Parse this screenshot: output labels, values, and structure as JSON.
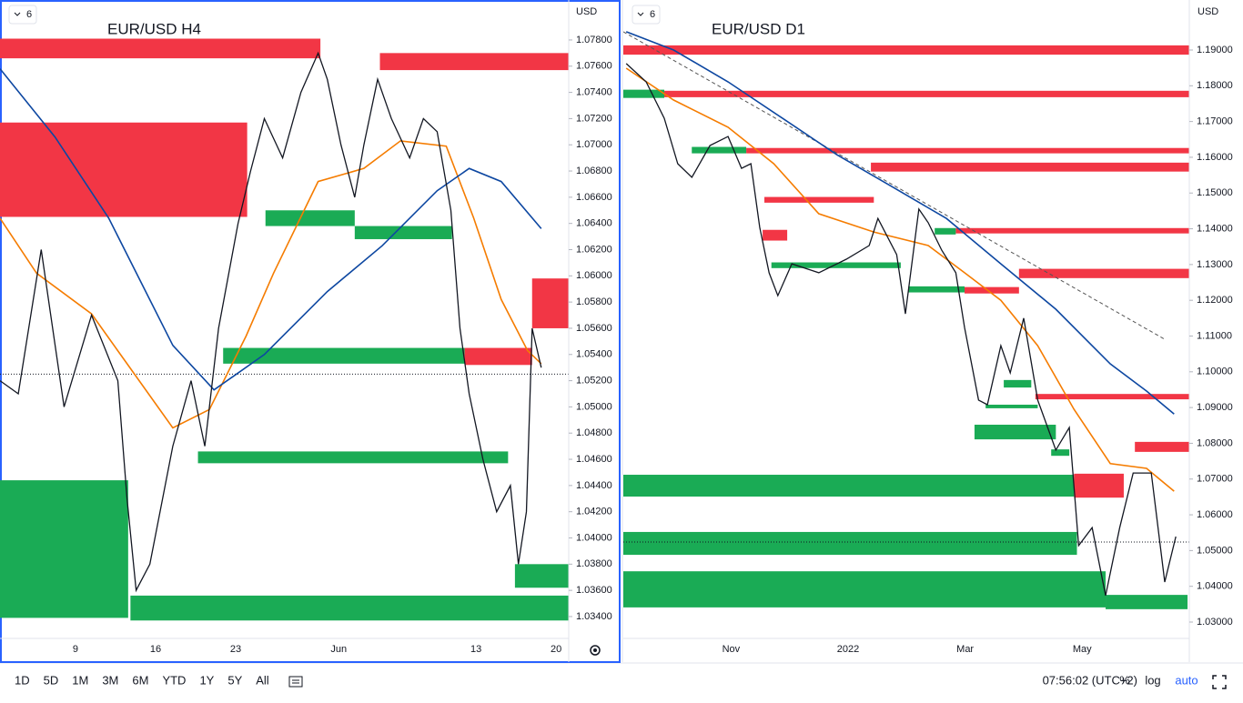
{
  "charts": [
    {
      "type": "line",
      "title": "EUR/USD H4",
      "badge": "6",
      "currency": "USD",
      "xlim": [
        2.4,
        52.1
      ],
      "ylim": [
        1.03247,
        1.08105
      ],
      "xticks": [
        9,
        16,
        23,
        {
          "value": 32,
          "label": "Jun"
        },
        13,
        20
      ],
      "xtick_values": [
        9,
        16,
        23,
        32,
        44,
        51
      ],
      "yticks": [
        {
          "value": 1.078,
          "label": "1.07800"
        },
        {
          "value": 1.076,
          "label": "1.07600"
        },
        {
          "value": 1.074,
          "label": "1.07400"
        },
        {
          "value": 1.072,
          "label": "1.07200"
        },
        {
          "value": 1.07,
          "label": "1.07000"
        },
        {
          "value": 1.068,
          "label": "1.06800"
        },
        {
          "value": 1.066,
          "label": "1.06600"
        },
        {
          "value": 1.064,
          "label": "1.06400"
        },
        {
          "value": 1.062,
          "label": "1.06200"
        },
        {
          "value": 1.06,
          "label": "1.06000"
        },
        {
          "value": 1.058,
          "label": "1.05800"
        },
        {
          "value": 1.056,
          "label": "1.05600"
        },
        {
          "value": 1.054,
          "label": "1.05400"
        },
        {
          "value": 1.052,
          "label": "1.05200"
        },
        {
          "value": 1.05,
          "label": "1.05000"
        },
        {
          "value": 1.048,
          "label": "1.04800"
        },
        {
          "value": 1.046,
          "label": "1.04600"
        },
        {
          "value": 1.044,
          "label": "1.04400"
        },
        {
          "value": 1.042,
          "label": "1.04200"
        },
        {
          "value": 1.04,
          "label": "1.04000"
        },
        {
          "value": 1.038,
          "label": "1.03800"
        },
        {
          "value": 1.036,
          "label": "1.03600"
        },
        {
          "value": 1.034,
          "label": "1.03400"
        }
      ],
      "last_price": 1.0525,
      "zones": [
        {
          "start": 2.4,
          "end": 30.4,
          "low": 1.0766,
          "high": 1.0781,
          "color": "#f23645"
        },
        {
          "start": 35.6,
          "end": 52.1,
          "low": 1.0757,
          "high": 1.077,
          "color": "#f23645"
        },
        {
          "start": 2.4,
          "end": 24.0,
          "low": 1.0645,
          "high": 1.0717,
          "color": "#f23645"
        },
        {
          "start": 25.6,
          "end": 33.4,
          "low": 1.0638,
          "high": 1.065,
          "color": "#1aab55"
        },
        {
          "start": 33.4,
          "end": 41.9,
          "low": 1.0628,
          "high": 1.0638,
          "color": "#1aab55"
        },
        {
          "start": 48.9,
          "end": 52.1,
          "low": 1.056,
          "high": 1.0598,
          "color": "#f23645"
        },
        {
          "start": 21.9,
          "end": 43.0,
          "low": 1.0533,
          "high": 1.0545,
          "color": "#1aab55"
        },
        {
          "start": 43.0,
          "end": 48.9,
          "low": 1.0532,
          "high": 1.0545,
          "color": "#f23645"
        },
        {
          "start": 19.7,
          "end": 46.8,
          "low": 1.0457,
          "high": 1.0466,
          "color": "#1aab55"
        },
        {
          "start": 2.4,
          "end": 13.6,
          "low": 1.0339,
          "high": 1.0444,
          "color": "#1aab55"
        },
        {
          "start": 47.4,
          "end": 52.1,
          "low": 1.0362,
          "high": 1.038,
          "color": "#1aab55"
        },
        {
          "start": 13.8,
          "end": 52.1,
          "low": 1.0337,
          "high": 1.0356,
          "color": "#1aab55"
        }
      ],
      "series": [
        {
          "color": "#f57c00",
          "x": [
            2.4,
            5.6,
            10.4,
            13.5,
            17.5,
            20.7,
            23.9,
            26.3,
            30.2,
            34.2,
            37.4,
            41.4,
            43.8,
            46.2,
            48.5,
            49.7
          ],
          "values": [
            1.0644,
            1.0602,
            1.0571,
            1.0533,
            1.0484,
            1.0498,
            1.0554,
            1.0602,
            1.0672,
            1.0682,
            1.0703,
            1.0699,
            1.0644,
            1.0582,
            1.0543,
            1.0533
          ]
        },
        {
          "color": "#0d47a1",
          "x": [
            2.4,
            7.2,
            11.9,
            17.5,
            21.1,
            25.5,
            31.0,
            35.8,
            40.6,
            43.4,
            46.2,
            49.7
          ],
          "values": [
            1.0758,
            1.0706,
            1.0644,
            1.0547,
            1.0513,
            1.054,
            1.0588,
            1.0623,
            1.0665,
            1.0682,
            1.0672,
            1.0636
          ]
        },
        {
          "color": "#131722",
          "x": [
            2.4,
            4.0,
            6.0,
            8.0,
            10.4,
            12.7,
            13.5,
            14.3,
            15.5,
            17.5,
            19.1,
            20.3,
            21.5,
            23.2,
            24.3,
            25.5,
            27.1,
            28.7,
            30.2,
            31.0,
            32.2,
            33.4,
            34.2,
            35.4,
            36.6,
            38.2,
            39.4,
            40.6,
            41.8,
            42.6,
            43.4,
            44.6,
            45.8,
            47.0,
            47.7,
            48.4,
            48.9,
            49.7
          ],
          "values": [
            1.052,
            1.051,
            1.062,
            1.05,
            1.057,
            1.052,
            1.043,
            1.036,
            1.038,
            1.047,
            1.052,
            1.047,
            1.056,
            1.064,
            1.068,
            1.072,
            1.069,
            1.074,
            1.077,
            1.075,
            1.07,
            1.066,
            1.07,
            1.075,
            1.072,
            1.069,
            1.072,
            1.071,
            1.065,
            1.056,
            1.051,
            1.046,
            1.042,
            1.044,
            1.038,
            1.042,
            1.056,
            1.053
          ]
        }
      ]
    },
    {
      "type": "line",
      "title": "EUR/USD D1",
      "badge": "6",
      "currency": "USD",
      "xlim": [
        9.16,
        18.83
      ],
      "ylim": [
        1.02593,
        1.20399
      ],
      "xticks": [
        {
          "value": 11,
          "label": "Nov"
        },
        2022,
        {
          "value": 15,
          "label": "Mar"
        },
        {
          "value": 17,
          "label": "May"
        }
      ],
      "xtick_values": [
        11,
        13,
        15,
        17
      ],
      "yticks": [
        {
          "value": 1.19,
          "label": "1.19000"
        },
        {
          "value": 1.18,
          "label": "1.18000"
        },
        {
          "value": 1.17,
          "label": "1.17000"
        },
        {
          "value": 1.16,
          "label": "1.16000"
        },
        {
          "value": 1.15,
          "label": "1.15000"
        },
        {
          "value": 1.14,
          "label": "1.14000"
        },
        {
          "value": 1.13,
          "label": "1.13000"
        },
        {
          "value": 1.12,
          "label": "1.12000"
        },
        {
          "value": 1.11,
          "label": "1.11000"
        },
        {
          "value": 1.1,
          "label": "1.10000"
        },
        {
          "value": 1.09,
          "label": "1.09000"
        },
        {
          "value": 1.08,
          "label": "1.08000"
        },
        {
          "value": 1.07,
          "label": "1.07000"
        },
        {
          "value": 1.06,
          "label": "1.06000"
        },
        {
          "value": 1.05,
          "label": "1.05000"
        },
        {
          "value": 1.04,
          "label": "1.04000"
        },
        {
          "value": 1.03,
          "label": "1.03000"
        }
      ],
      "last_price": 1.0524,
      "trendline": {
        "x": [
          9.16,
          18.41
        ],
        "values": [
          1.1951,
          1.1091
        ]
      },
      "zones": [
        {
          "start": 9.16,
          "end": 18.83,
          "low": 1.1887,
          "high": 1.1913,
          "color": "#f23645"
        },
        {
          "start": 9.86,
          "end": 18.83,
          "low": 1.1768,
          "high": 1.1786,
          "color": "#f23645"
        },
        {
          "start": 9.16,
          "end": 9.86,
          "low": 1.1766,
          "high": 1.1789,
          "color": "#1aab55"
        },
        {
          "start": 11.26,
          "end": 18.83,
          "low": 1.1611,
          "high": 1.1626,
          "color": "#f23645"
        },
        {
          "start": 10.33,
          "end": 11.26,
          "low": 1.1611,
          "high": 1.1629,
          "color": "#1aab55"
        },
        {
          "start": 13.39,
          "end": 18.83,
          "low": 1.156,
          "high": 1.1585,
          "color": "#f23645"
        },
        {
          "start": 11.57,
          "end": 13.44,
          "low": 1.1473,
          "high": 1.1489,
          "color": "#f23645"
        },
        {
          "start": 11.54,
          "end": 11.96,
          "low": 1.1367,
          "high": 1.1397,
          "color": "#f23645"
        },
        {
          "start": 14.84,
          "end": 18.83,
          "low": 1.1387,
          "high": 1.1402,
          "color": "#f23645"
        },
        {
          "start": 14.48,
          "end": 14.84,
          "low": 1.1384,
          "high": 1.1402,
          "color": "#1aab55"
        },
        {
          "start": 11.69,
          "end": 13.9,
          "low": 1.129,
          "high": 1.1306,
          "color": "#1aab55"
        },
        {
          "start": 15.92,
          "end": 18.83,
          "low": 1.1262,
          "high": 1.1288,
          "color": "#f23645"
        },
        {
          "start": 14.03,
          "end": 14.99,
          "low": 1.1222,
          "high": 1.1239,
          "color": "#1aab55"
        },
        {
          "start": 14.99,
          "end": 15.92,
          "low": 1.1219,
          "high": 1.1237,
          "color": "#f23645"
        },
        {
          "start": 15.66,
          "end": 16.13,
          "low": 1.0956,
          "high": 1.0977,
          "color": "#1aab55"
        },
        {
          "start": 16.2,
          "end": 18.83,
          "low": 1.0923,
          "high": 1.0938,
          "color": "#f23645"
        },
        {
          "start": 15.35,
          "end": 16.24,
          "low": 1.0898,
          "high": 1.0908,
          "color": "#1aab55"
        },
        {
          "start": 15.16,
          "end": 16.55,
          "low": 1.0811,
          "high": 1.0852,
          "color": "#1aab55"
        },
        {
          "start": 16.47,
          "end": 16.78,
          "low": 1.0765,
          "high": 1.0783,
          "color": "#1aab55"
        },
        {
          "start": 17.9,
          "end": 18.83,
          "low": 1.0776,
          "high": 1.0804,
          "color": "#f23645"
        },
        {
          "start": 9.16,
          "end": 16.86,
          "low": 1.0651,
          "high": 1.0712,
          "color": "#1aab55"
        },
        {
          "start": 16.86,
          "end": 17.71,
          "low": 1.0648,
          "high": 1.0715,
          "color": "#f23645"
        },
        {
          "start": 9.16,
          "end": 16.91,
          "low": 1.0488,
          "high": 1.0552,
          "color": "#1aab55"
        },
        {
          "start": 9.16,
          "end": 17.4,
          "low": 1.0341,
          "high": 1.0442,
          "color": "#1aab55"
        },
        {
          "start": 17.4,
          "end": 18.8,
          "low": 1.0336,
          "high": 1.0376,
          "color": "#1aab55"
        }
      ],
      "series": [
        {
          "color": "#f57c00",
          "x": [
            9.21,
            10.02,
            10.95,
            11.73,
            12.5,
            13.44,
            14.37,
            14.99,
            15.61,
            16.24,
            16.86,
            17.48,
            18.1,
            18.57
          ],
          "values": [
            1.1849,
            1.176,
            1.1684,
            1.1582,
            1.1442,
            1.1391,
            1.1353,
            1.1277,
            1.12,
            1.1073,
            1.0895,
            1.0743,
            1.073,
            1.0666
          ]
        },
        {
          "color": "#0d47a1",
          "x": [
            9.21,
            10.02,
            10.95,
            11.88,
            12.81,
            13.75,
            14.68,
            15.61,
            16.55,
            17.48,
            18.1,
            18.57
          ],
          "values": [
            1.1951,
            1.19,
            1.1811,
            1.1709,
            1.1607,
            1.1518,
            1.1429,
            1.1302,
            1.1175,
            1.1022,
            1.0946,
            1.0882
          ]
        },
        {
          "color": "#131722",
          "x": [
            9.21,
            9.55,
            9.86,
            10.09,
            10.33,
            10.64,
            10.95,
            11.18,
            11.34,
            11.49,
            11.65,
            11.8,
            12.04,
            12.5,
            12.97,
            13.36,
            13.51,
            13.83,
            13.98,
            14.21,
            14.37,
            14.6,
            14.84,
            14.99,
            15.23,
            15.38,
            15.61,
            15.77,
            16.0,
            16.24,
            16.55,
            16.78,
            16.94,
            17.17,
            17.4,
            17.64,
            17.87,
            18.18,
            18.41,
            18.6
          ],
          "values": [
            1.1862,
            1.1811,
            1.1709,
            1.1582,
            1.1544,
            1.1633,
            1.1658,
            1.1569,
            1.1582,
            1.1404,
            1.1277,
            1.1213,
            1.1302,
            1.1277,
            1.1315,
            1.1353,
            1.1429,
            1.1328,
            1.1162,
            1.1455,
            1.1417,
            1.134,
            1.1277,
            1.1124,
            1.0921,
            1.0908,
            1.1073,
            1.0997,
            1.115,
            1.0921,
            1.0781,
            1.0844,
            1.0514,
            1.0564,
            1.0374,
            1.0564,
            1.0717,
            1.0717,
            1.0412,
            1.0539
          ]
        }
      ]
    }
  ],
  "toolbar": {
    "ranges": [
      "1D",
      "5D",
      "1M",
      "3M",
      "6M",
      "YTD",
      "1Y",
      "5Y",
      "All"
    ],
    "time": "07:56:02 (UTC+2)",
    "percent": "%",
    "log": "log",
    "auto": "auto"
  }
}
